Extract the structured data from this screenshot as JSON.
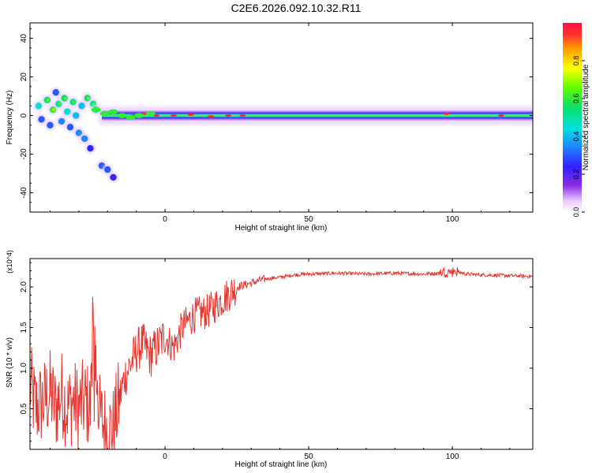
{
  "title": "C2E6.2026.092.10.32.R11",
  "chart_data": [
    {
      "type": "heatmap",
      "title": "C2E6.2026.092.10.32.R11",
      "xlabel": "Height of straight line (km)",
      "ylabel": "Frequency (Hz)",
      "xlim": [
        -47,
        128
      ],
      "ylim": [
        -50,
        48
      ],
      "xticks": [
        0,
        50,
        100
      ],
      "yticks": [
        -40,
        -20,
        0,
        20,
        40
      ],
      "colorbar": {
        "label": "Normalized spectral amplitude",
        "range": [
          0,
          1
        ],
        "ticks": [
          0.0,
          0.2,
          0.4,
          0.6,
          0.8
        ],
        "colormap": "rainbow (white-violet-blue-cyan-green-yellow-red)"
      },
      "band": {
        "description": "dominant carrier trace near 0 Hz",
        "x_start": -22,
        "x_end": 128,
        "center_freq": 0,
        "width_hz": 6,
        "peak_amplitude": 0.95
      },
      "scatter_blobs": [
        {
          "x": -44,
          "y": 5,
          "amp": 0.45
        },
        {
          "x": -43,
          "y": -2,
          "amp": 0.3
        },
        {
          "x": -41,
          "y": 8,
          "amp": 0.55
        },
        {
          "x": -40,
          "y": -5,
          "amp": 0.3
        },
        {
          "x": -39,
          "y": 3,
          "amp": 0.6
        },
        {
          "x": -38,
          "y": 12,
          "amp": 0.3
        },
        {
          "x": -37,
          "y": 6,
          "amp": 0.5
        },
        {
          "x": -36,
          "y": -3,
          "amp": 0.35
        },
        {
          "x": -35,
          "y": 9,
          "amp": 0.55
        },
        {
          "x": -34,
          "y": 2,
          "amp": 0.45
        },
        {
          "x": -33,
          "y": -6,
          "amp": 0.3
        },
        {
          "x": -32,
          "y": 7,
          "amp": 0.5
        },
        {
          "x": -31,
          "y": 0,
          "amp": 0.4
        },
        {
          "x": -30,
          "y": -9,
          "amp": 0.35
        },
        {
          "x": -29,
          "y": 5,
          "amp": 0.4
        },
        {
          "x": -28,
          "y": -12,
          "amp": 0.35
        },
        {
          "x": -27,
          "y": 9,
          "amp": 0.55
        },
        {
          "x": -26,
          "y": -17,
          "amp": 0.25
        },
        {
          "x": -25,
          "y": 6,
          "amp": 0.5
        },
        {
          "x": -24,
          "y": 3,
          "amp": 0.45
        },
        {
          "x": -22,
          "y": -26,
          "amp": 0.3
        },
        {
          "x": -20,
          "y": -28,
          "amp": 0.3
        },
        {
          "x": -18,
          "y": -32,
          "amp": 0.25
        },
        {
          "x": -19,
          "y": -1,
          "amp": 0.45
        }
      ]
    },
    {
      "type": "line",
      "xlabel": "Height of straight line (km)",
      "ylabel": "SNR (10 * v/v)",
      "y_multiplier": "(x10^4)",
      "xlim": [
        -47,
        128
      ],
      "ylim": [
        0,
        2.35
      ],
      "xticks": [
        0,
        50,
        100
      ],
      "yticks": [
        0.5,
        1.0,
        1.5,
        2.0
      ],
      "series": [
        {
          "name": "SNR",
          "color": "#e8332d",
          "x": [
            -47,
            -45,
            -42,
            -40,
            -38,
            -36,
            -34,
            -32,
            -30,
            -28,
            -26,
            -25,
            -24,
            -22,
            -20,
            -18,
            -16,
            -14,
            -12,
            -10,
            -8,
            -5,
            -2,
            0,
            3,
            6,
            10,
            15,
            20,
            25,
            30,
            35,
            40,
            45,
            50,
            60,
            70,
            80,
            90,
            95,
            100,
            105,
            110,
            120,
            128
          ],
          "values": [
            0.8,
            0.5,
            0.6,
            0.7,
            0.5,
            0.7,
            0.5,
            0.6,
            0.5,
            0.6,
            0.5,
            1.1,
            0.5,
            0.35,
            0.25,
            0.25,
            0.6,
            0.9,
            1.05,
            1.2,
            1.3,
            1.15,
            1.3,
            1.4,
            1.25,
            1.5,
            1.65,
            1.7,
            1.85,
            2.0,
            2.05,
            2.1,
            2.12,
            2.15,
            2.16,
            2.17,
            2.16,
            2.17,
            2.16,
            2.17,
            2.2,
            2.16,
            2.15,
            2.14,
            2.13
          ]
        }
      ]
    }
  ]
}
